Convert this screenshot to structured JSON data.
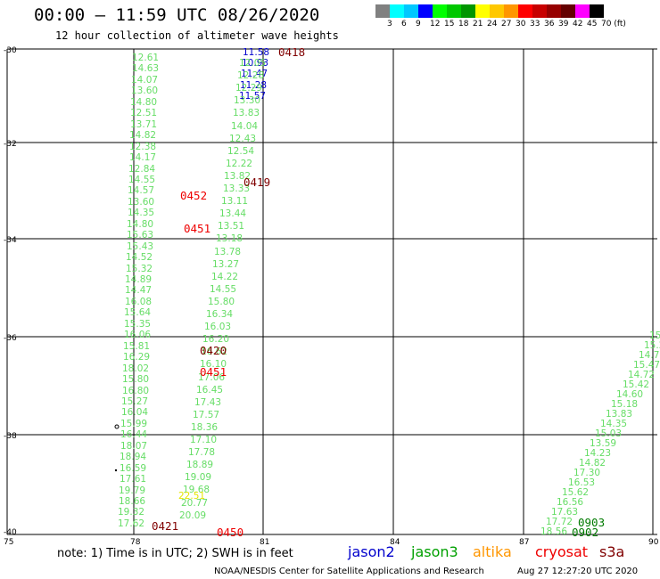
{
  "title": "00:00 – 11:59 UTC 08/26/2020",
  "subtitle": "12 hour collection of altimeter wave heights",
  "legend": {
    "labels": [
      "3",
      "6",
      "9",
      "12",
      "15",
      "18",
      "21",
      "24",
      "27",
      "30",
      "33",
      "36",
      "39",
      "42",
      "45",
      "70 (ft)"
    ],
    "colors": [
      "#808080",
      "#00ffff",
      "#00c8ff",
      "#0000ff",
      "#00ff00",
      "#00c800",
      "#009600",
      "#ffff00",
      "#ffc800",
      "#ff9600",
      "#ff0000",
      "#c80000",
      "#960000",
      "#640000",
      "#ff00ff",
      "#000000"
    ]
  },
  "map": {
    "lat_labels": [
      "-30",
      "-32",
      "-34",
      "-36",
      "-38",
      "-40"
    ],
    "lon_labels": [
      "75",
      "78",
      "81",
      "84",
      "87",
      "90"
    ]
  },
  "colors": {
    "light_green": "#66dd66",
    "green": "#00a000",
    "dark_green": "#007a00",
    "blue": "#0000cc",
    "yellow": "#e6e600",
    "red": "#ee0000",
    "dark_red": "#800000"
  },
  "tracks": {
    "left_track": [
      "12.61",
      "14.63",
      "14.07",
      "13.60",
      "14.80",
      "12.51",
      "13.71",
      "14.82",
      "12.38",
      "14.17",
      "12.84",
      "14.55",
      "14.57",
      "13.60",
      "14.35",
      "14.80",
      "15.63",
      "15.43",
      "14.52",
      "15.32",
      "14.89",
      "14.47",
      "16.08",
      "15.64",
      "15.35",
      "16.06",
      "15.81",
      "16.29",
      "18.02",
      "15.80",
      "16.80",
      "15.27",
      "16.04",
      "15.99",
      "16.44",
      "18.07",
      "18.94",
      "16.59",
      "17.61",
      "19.79",
      "18.66",
      "19.32",
      "17.62"
    ],
    "upper_track_blue": [
      "11.58",
      "10.93",
      "11.47",
      "11.28",
      "11.57"
    ],
    "upper_track_green": [
      "12.05",
      "12.28",
      "12.29",
      "13.30",
      "13.83",
      "14.04",
      "12.43",
      "12.54",
      "12.22",
      "13.82",
      "13.33",
      "13.11",
      "13.44",
      "13.51",
      "13.18",
      "13.78",
      "13.27",
      "14.22",
      "14.55",
      "15.80",
      "16.34",
      "16.03",
      "16.20",
      "16.62",
      "16.10",
      "17.06",
      "16.45",
      "17.43",
      "17.57",
      "18.36",
      "17.10",
      "17.78",
      "18.89",
      "19.09",
      "19.68",
      "20.77",
      "20.09"
    ],
    "upper_track_yellow": [
      "22.51"
    ],
    "right_track": [
      "15.9",
      "15.2",
      "14.7",
      "15.47",
      "14.72",
      "15.42",
      "14.60",
      "15.18",
      "13.83",
      "14.35",
      "15.03",
      "13.59",
      "14.23",
      "14.82",
      "17.30",
      "16.53",
      "15.62",
      "16.56",
      "17.63",
      "17.72",
      "18.56"
    ],
    "time_labels": {
      "t0418": "0418",
      "t0419": "0419",
      "t0452": "0452",
      "t0451a": "0451",
      "t0420": "0420",
      "t0451b": "0451",
      "t0421": "0421",
      "t0450": "0450",
      "t0903": "0903",
      "t0902": "0902"
    }
  },
  "note": "note: 1) Time is in UTC; 2) SWH is in feet",
  "satellites": [
    {
      "name": "jason2",
      "color": "#0000cc"
    },
    {
      "name": "jason3",
      "color": "#00a000"
    },
    {
      "name": "altika",
      "color": "#ff9600"
    },
    {
      "name": "cryosat",
      "color": "#ee0000"
    },
    {
      "name": "s3a",
      "color": "#800000"
    }
  ],
  "footer_left": "NOAA/NESDIS Center for Satellite Applications and Research",
  "footer_right": "Aug 27 12:27:20 UTC 2020"
}
